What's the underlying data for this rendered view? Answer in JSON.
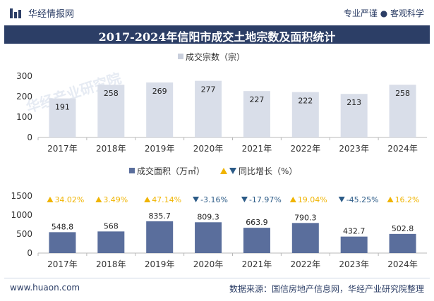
{
  "header": {
    "brand_name": "华经情报网",
    "tagline": "专业严谨 ● 客观科学",
    "title": "2017-2024年信阳市成交土地宗数及面积统计"
  },
  "footer": {
    "website": "www.huaon.com",
    "source": "数据来源：国信房地产信息网，华经产业研究院整理"
  },
  "watermark": "华经产业研究院",
  "colors": {
    "count_bar": "#d9dee9",
    "area_bar": "#5a6e9c",
    "up_marker": "#f0b400",
    "down_marker": "#2c5b87",
    "title_band": "#2c3e66"
  },
  "chart_data": [
    {
      "type": "bar",
      "title": "",
      "legend": "成交宗数（宗）",
      "categories": [
        "2017年",
        "2018年",
        "2019年",
        "2020年",
        "2021年",
        "2022年",
        "2023年",
        "2024年"
      ],
      "values": [
        191,
        258,
        269,
        277,
        227,
        222,
        213,
        258
      ],
      "yticks": [
        0,
        100,
        200,
        300
      ],
      "ylim": [
        0,
        300
      ],
      "grid": false
    },
    {
      "type": "bar",
      "title": "",
      "legend": "成交面积（万㎡）",
      "growth_legend": "同比增长（%）",
      "categories": [
        "2017年",
        "2018年",
        "2019年",
        "2020年",
        "2021年",
        "2022年",
        "2023年",
        "2024年"
      ],
      "values": [
        548.8,
        568,
        835.7,
        809.3,
        663.9,
        790.3,
        432.7,
        502.8
      ],
      "value_labels": [
        "548.8",
        "568",
        "835.7",
        "809.3",
        "663.9",
        "790.3",
        "432.7",
        "502.8"
      ],
      "growth": [
        34.02,
        3.49,
        47.14,
        -3.16,
        -17.97,
        19.04,
        -45.25,
        16.2
      ],
      "growth_labels": [
        "34.02%",
        "3.49%",
        "47.14%",
        "-3.16%",
        "-17.97%",
        "19.04%",
        "-45.25%",
        "16.2%"
      ],
      "yticks": [
        0,
        500,
        1000,
        1500
      ],
      "ylim": [
        0,
        1500
      ],
      "grid": false
    }
  ]
}
